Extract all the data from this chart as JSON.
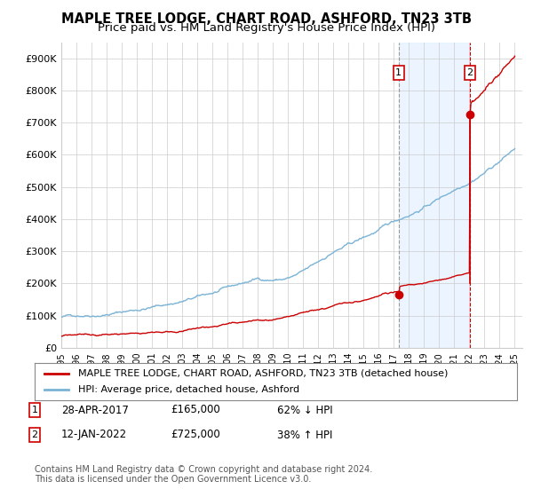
{
  "title": "MAPLE TREE LODGE, CHART ROAD, ASHFORD, TN23 3TB",
  "subtitle": "Price paid vs. HM Land Registry's House Price Index (HPI)",
  "title_fontsize": 10.5,
  "subtitle_fontsize": 9.5,
  "x_start_year": 1995,
  "x_end_year": 2025,
  "y_min": 0,
  "y_max": 950000,
  "y_ticks": [
    0,
    100000,
    200000,
    300000,
    400000,
    500000,
    600000,
    700000,
    800000,
    900000
  ],
  "y_tick_labels": [
    "£0",
    "£100K",
    "£200K",
    "£300K",
    "£400K",
    "£500K",
    "£600K",
    "£700K",
    "£800K",
    "£900K"
  ],
  "sale1_date": 2017.32,
  "sale1_price": 165000,
  "sale2_date": 2022.03,
  "sale2_price": 725000,
  "sale1_label": "1",
  "sale2_label": "2",
  "hpi_line_color": "#7ab3d6",
  "price_line_color": "#cc0000",
  "marker_color": "#cc0000",
  "dashed_line_color": "#999999",
  "shade_color": "#ddeeff",
  "shade_alpha": 0.55,
  "grid_color": "#cccccc",
  "background_color": "#ffffff",
  "legend_label_red": "MAPLE TREE LODGE, CHART ROAD, ASHFORD, TN23 3TB (detached house)",
  "legend_label_blue": "HPI: Average price, detached house, Ashford",
  "footnote": "Contains HM Land Registry data © Crown copyright and database right 2024.\nThis data is licensed under the Open Government Licence v3.0.",
  "row1_num": "1",
  "row1_date": "28-APR-2017",
  "row1_price": "£165,000",
  "row1_hpi": "62% ↓ HPI",
  "row2_num": "2",
  "row2_date": "12-JAN-2022",
  "row2_price": "£725,000",
  "row2_hpi": "38% ↑ HPI"
}
